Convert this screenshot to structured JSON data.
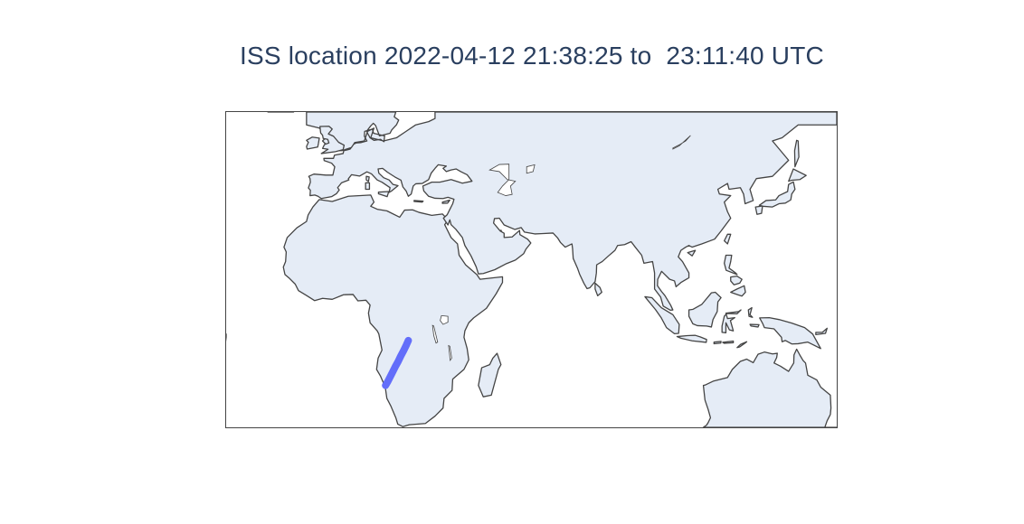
{
  "title": "ISS location 2022-04-12 21:38:25 to  23:11:40 UTC",
  "map": {
    "projection": "equirectangular",
    "lon_range": [
      -35,
      155
    ],
    "lat_range": [
      -35,
      63
    ],
    "land_color": "#e5ecf6",
    "coastline_color": "#444444",
    "frame_color": "#444444"
  },
  "chart_data": {
    "type": "line",
    "series": [
      {
        "color": "#636efa",
        "line_width": 8,
        "lon": [
          21.7,
          21.0,
          20.2,
          19.3,
          18.5,
          17.6,
          16.8,
          16.0,
          15.3,
          14.6
        ],
        "lat": [
          -8.0,
          -9.6,
          -11.2,
          -12.9,
          -14.6,
          -16.2,
          -17.8,
          -19.4,
          -20.8,
          -22.0
        ]
      }
    ]
  }
}
